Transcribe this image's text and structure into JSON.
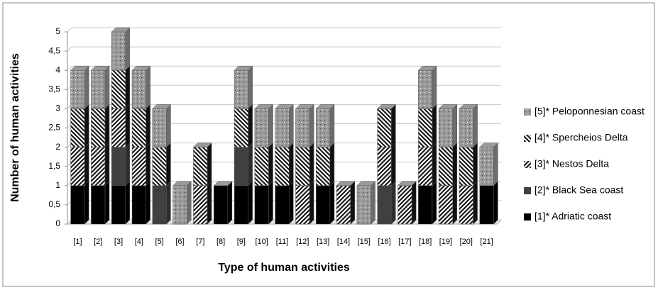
{
  "chart_data": {
    "type": "bar3d-stacked",
    "xlabel": "Type of human activities",
    "ylabel": "Number of human activities",
    "categories": [
      "[1]",
      "[2]",
      "[3]",
      "[4]",
      "[5]",
      "[6]",
      "[7]",
      "[8]",
      "[9]",
      "[10]",
      "[11]",
      "[12]",
      "[13]",
      "[14]",
      "[15]",
      "[16]",
      "[17]",
      "[18]",
      "[19]",
      "[20]",
      "[21]"
    ],
    "series": [
      {
        "name": "[1]* Adriatic coast",
        "color": "#000000",
        "pattern": "solid",
        "values": [
          1,
          1,
          1,
          1,
          0,
          0,
          0,
          1,
          1,
          1,
          1,
          0,
          1,
          0,
          0,
          0,
          0,
          1,
          0,
          0,
          1
        ]
      },
      {
        "name": "[2]* Black Sea coast",
        "color": "#404040",
        "pattern": "solid",
        "values": [
          0,
          0,
          1,
          0,
          1,
          0,
          0,
          0,
          1,
          0,
          0,
          0,
          0,
          0,
          0,
          1,
          0,
          0,
          0,
          0,
          0
        ]
      },
      {
        "name": "[3]* Nestos Delta",
        "color": "#1a1a1a",
        "pattern": "forward-hatch",
        "values": [
          1,
          1,
          1,
          1,
          0,
          0,
          1,
          0,
          0,
          0,
          0,
          1,
          0,
          1,
          0,
          1,
          1,
          1,
          1,
          1,
          0
        ]
      },
      {
        "name": "[4]* Spercheios Delta",
        "color": "#1a1a1a",
        "pattern": "back-hatch",
        "values": [
          1,
          1,
          1,
          1,
          1,
          0,
          1,
          0,
          1,
          1,
          1,
          1,
          1,
          0,
          0,
          1,
          0,
          1,
          1,
          1,
          0
        ]
      },
      {
        "name": "[5]* Peloponnesian coast",
        "color": "#9a9a9a",
        "pattern": "dots",
        "values": [
          1,
          1,
          1,
          1,
          1,
          1,
          0,
          0,
          1,
          1,
          1,
          1,
          1,
          0,
          1,
          0,
          0,
          1,
          1,
          1,
          1
        ]
      }
    ],
    "ylim": [
      0,
      5
    ],
    "yticks": [
      0,
      {
        "value": 0.5,
        "label": "0,5"
      },
      1,
      {
        "value": 1.5,
        "label": "1,5"
      },
      2,
      {
        "value": 2.5,
        "label": "2,5"
      },
      3,
      {
        "value": 3.5,
        "label": "3,5"
      },
      4,
      {
        "value": 4.5,
        "label": "4,5"
      },
      5
    ],
    "grid": true,
    "legend": "right"
  }
}
